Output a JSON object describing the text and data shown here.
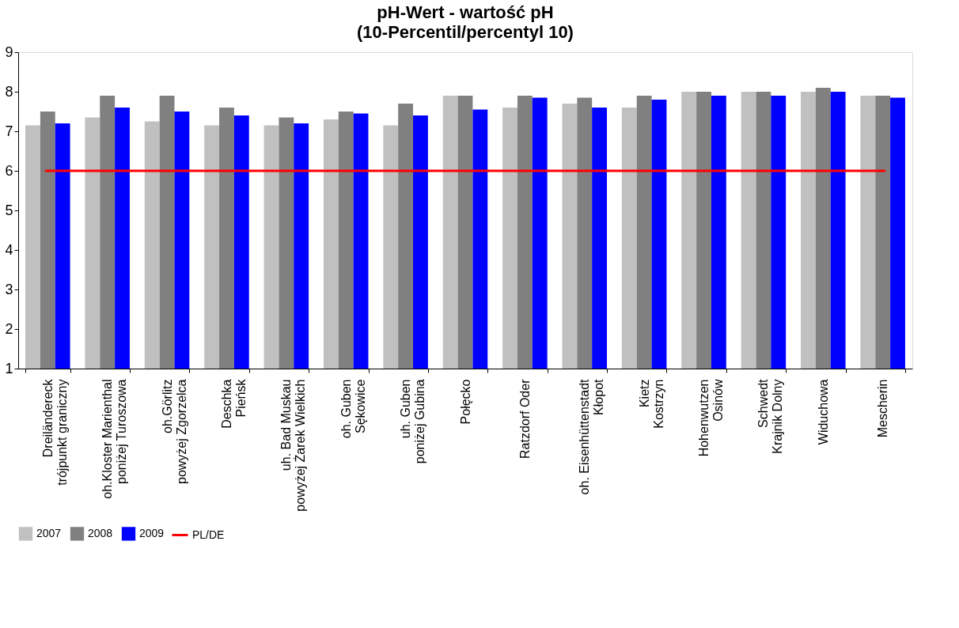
{
  "chart_data": {
    "type": "bar",
    "title": "pH-Wert - wartość pH",
    "subtitle": "(10-Percentil/percentyl 10)",
    "categories": [
      "Dreiländereck\ntrójpunkt graniczny",
      "oh.Kloster Marienthal\nponiżej Turoszowa",
      "oh.Görlitz\npowyżej Zgorzelca",
      "Deschka\nPieńsk",
      "uh. Bad Muskau\npowyżej Żarek Wielkich",
      "oh. Guben\nSękowice",
      "uh. Guben\nponiżej Gubina",
      "Połęcko",
      "Ratzdorf Oder",
      "oh. Eisenhüttenstadt\nKłopot",
      "Kietz\nKostrzyn",
      "Hohenwutzen\nOsinów",
      "Schwedt\nKrajnik Dolny",
      "Widuchowa",
      "Mescherin"
    ],
    "series": [
      {
        "name": "2007",
        "color": "#c0c0c0",
        "values": [
          7.15,
          7.35,
          7.25,
          7.15,
          7.15,
          7.3,
          7.15,
          7.9,
          7.6,
          7.7,
          7.6,
          8.0,
          8.0,
          8.0,
          7.9
        ]
      },
      {
        "name": "2008",
        "color": "#808080",
        "values": [
          7.5,
          7.9,
          7.9,
          7.6,
          7.35,
          7.5,
          7.7,
          7.9,
          7.9,
          7.85,
          7.9,
          8.0,
          8.0,
          8.1,
          7.9
        ]
      },
      {
        "name": "2009",
        "color": "#0000ff",
        "values": [
          7.2,
          7.6,
          7.5,
          7.4,
          7.2,
          7.45,
          7.4,
          7.55,
          7.85,
          7.6,
          7.8,
          7.9,
          7.9,
          8.0,
          7.85
        ]
      }
    ],
    "ref_lines": [
      {
        "axis": "y",
        "value": 6,
        "label": "PL/DE",
        "color": "#ff0000"
      }
    ],
    "ylim": [
      1,
      9
    ],
    "yticks": [
      1,
      2,
      3,
      4,
      5,
      6,
      7,
      8,
      9
    ],
    "grid": false,
    "legend": "bottom"
  }
}
